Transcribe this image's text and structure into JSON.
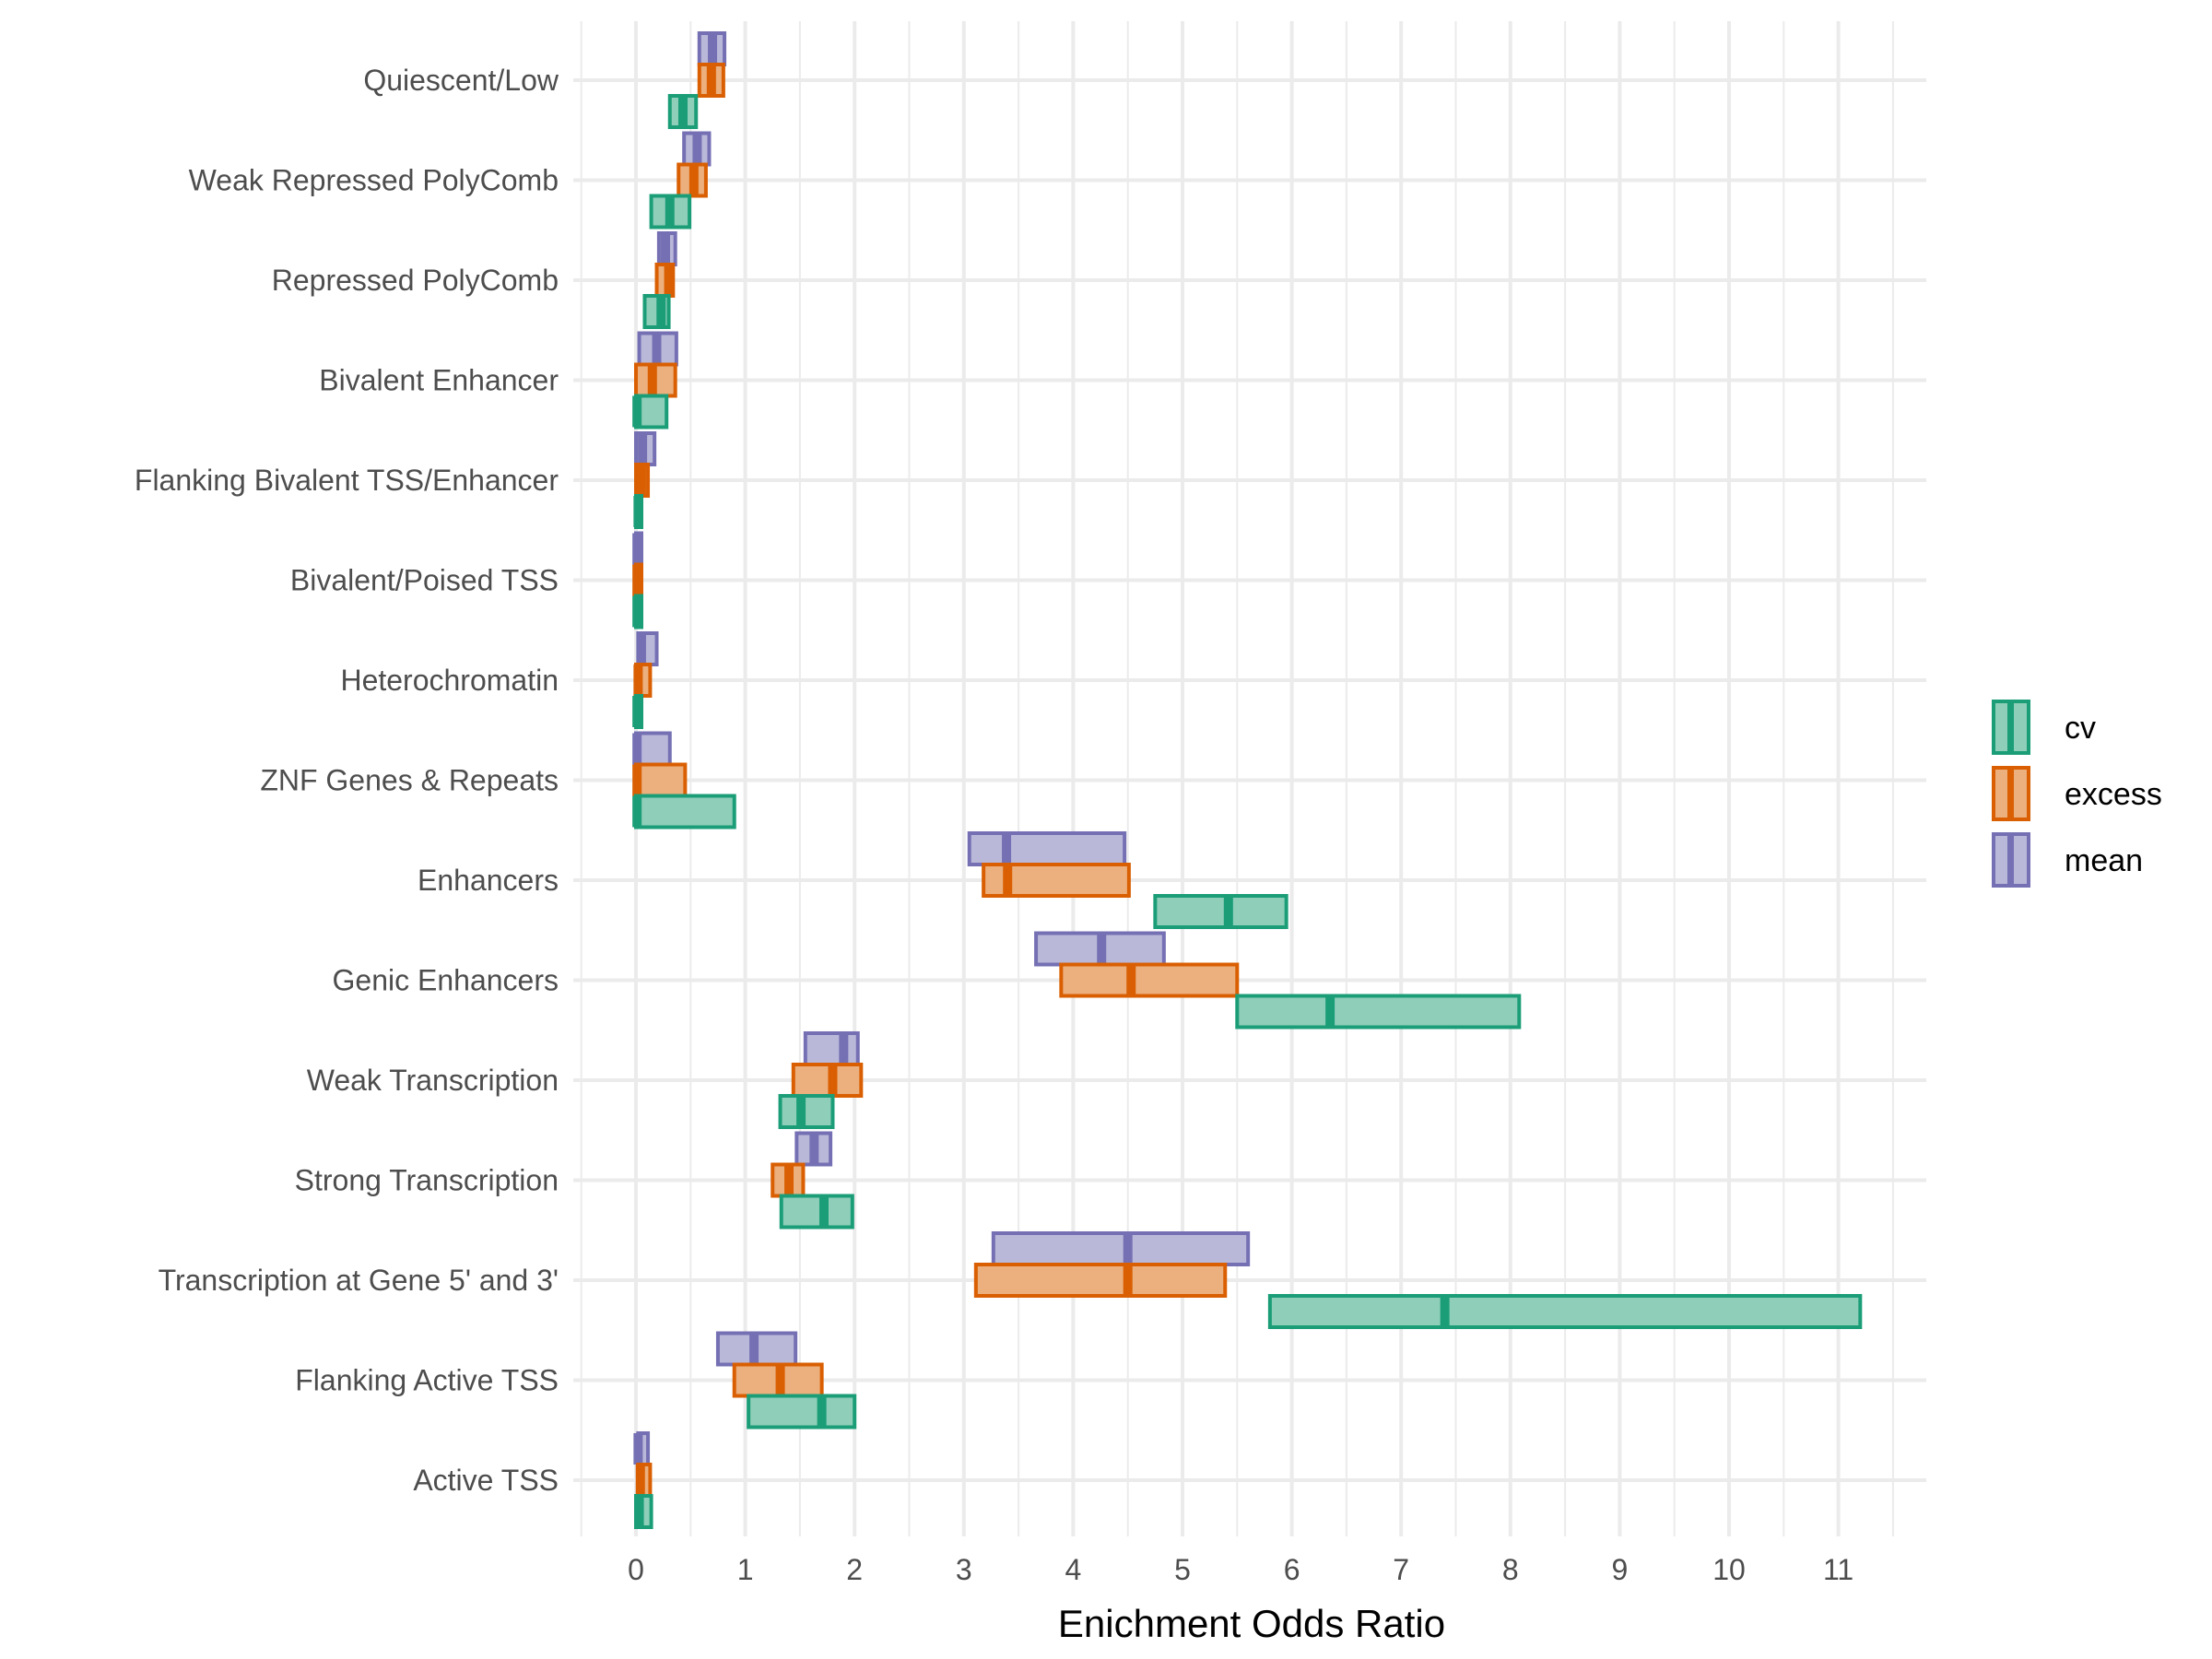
{
  "chart_data": {
    "type": "crossbar",
    "title": "",
    "xlabel": "Enichment Odds Ratio",
    "ylabel": "",
    "xlim": [
      -0.5,
      11.5
    ],
    "x_ticks": [
      0,
      1,
      2,
      3,
      4,
      5,
      6,
      7,
      8,
      9,
      10,
      11
    ],
    "grid": true,
    "legend": {
      "position": "right",
      "entries": [
        "cv",
        "excess",
        "mean"
      ]
    },
    "colors": {
      "cv": "#1b9e77",
      "excess": "#d95f02",
      "mean": "#7570b3"
    },
    "categories": [
      "Quiescent/Low",
      "Weak Repressed PolyComb",
      "Repressed PolyComb",
      "Bivalent Enhancer",
      "Flanking Bivalent TSS/Enhancer",
      "Bivalent/Poised TSS",
      "Heterochromatin",
      "ZNF Genes & Repeats",
      "Enhancers",
      "Genic Enhancers",
      "Weak Transcription",
      "Strong Transcription",
      "Transcription at Gene 5' and 3'",
      "Flanking Active TSS",
      "Active TSS"
    ],
    "series": [
      {
        "name": "mean",
        "estimate": [
          0.7,
          0.56,
          0.27,
          0.19,
          0.06,
          0.01,
          0.05,
          0.01,
          3.39,
          4.26,
          1.9,
          1.63,
          4.5,
          1.08,
          0.02
        ],
        "lower": [
          0.58,
          0.44,
          0.21,
          0.03,
          0.0,
          0.0,
          0.02,
          0.0,
          3.05,
          3.66,
          1.55,
          1.47,
          3.27,
          0.75,
          0.02
        ],
        "upper": [
          0.81,
          0.67,
          0.36,
          0.37,
          0.17,
          0.05,
          0.19,
          0.31,
          4.47,
          4.83,
          2.03,
          1.78,
          5.6,
          1.46,
          0.11
        ]
      },
      {
        "name": "excess",
        "estimate": [
          0.69,
          0.53,
          0.3,
          0.15,
          0.05,
          0.01,
          0.02,
          0.01,
          3.4,
          4.53,
          1.8,
          1.4,
          4.5,
          1.32,
          0.04
        ],
        "lower": [
          0.58,
          0.39,
          0.19,
          0.0,
          0.0,
          0.0,
          0.0,
          0.0,
          3.18,
          3.89,
          1.44,
          1.25,
          3.11,
          0.9,
          0.02
        ],
        "upper": [
          0.8,
          0.64,
          0.34,
          0.36,
          0.11,
          0.05,
          0.13,
          0.45,
          4.51,
          5.5,
          2.06,
          1.53,
          5.39,
          1.7,
          0.13
        ]
      },
      {
        "name": "cv",
        "estimate": [
          0.43,
          0.31,
          0.23,
          0.01,
          0.02,
          0.01,
          0.01,
          0.01,
          5.42,
          6.35,
          1.51,
          1.72,
          7.4,
          1.7,
          0.03
        ],
        "lower": [
          0.31,
          0.14,
          0.08,
          0.0,
          0.0,
          0.0,
          0.0,
          0.0,
          4.75,
          5.5,
          1.32,
          1.33,
          5.8,
          1.03,
          0.0
        ],
        "upper": [
          0.55,
          0.49,
          0.3,
          0.28,
          0.04,
          0.05,
          0.04,
          0.9,
          5.95,
          8.08,
          1.8,
          1.98,
          11.2,
          2.0,
          0.14
        ]
      }
    ]
  }
}
